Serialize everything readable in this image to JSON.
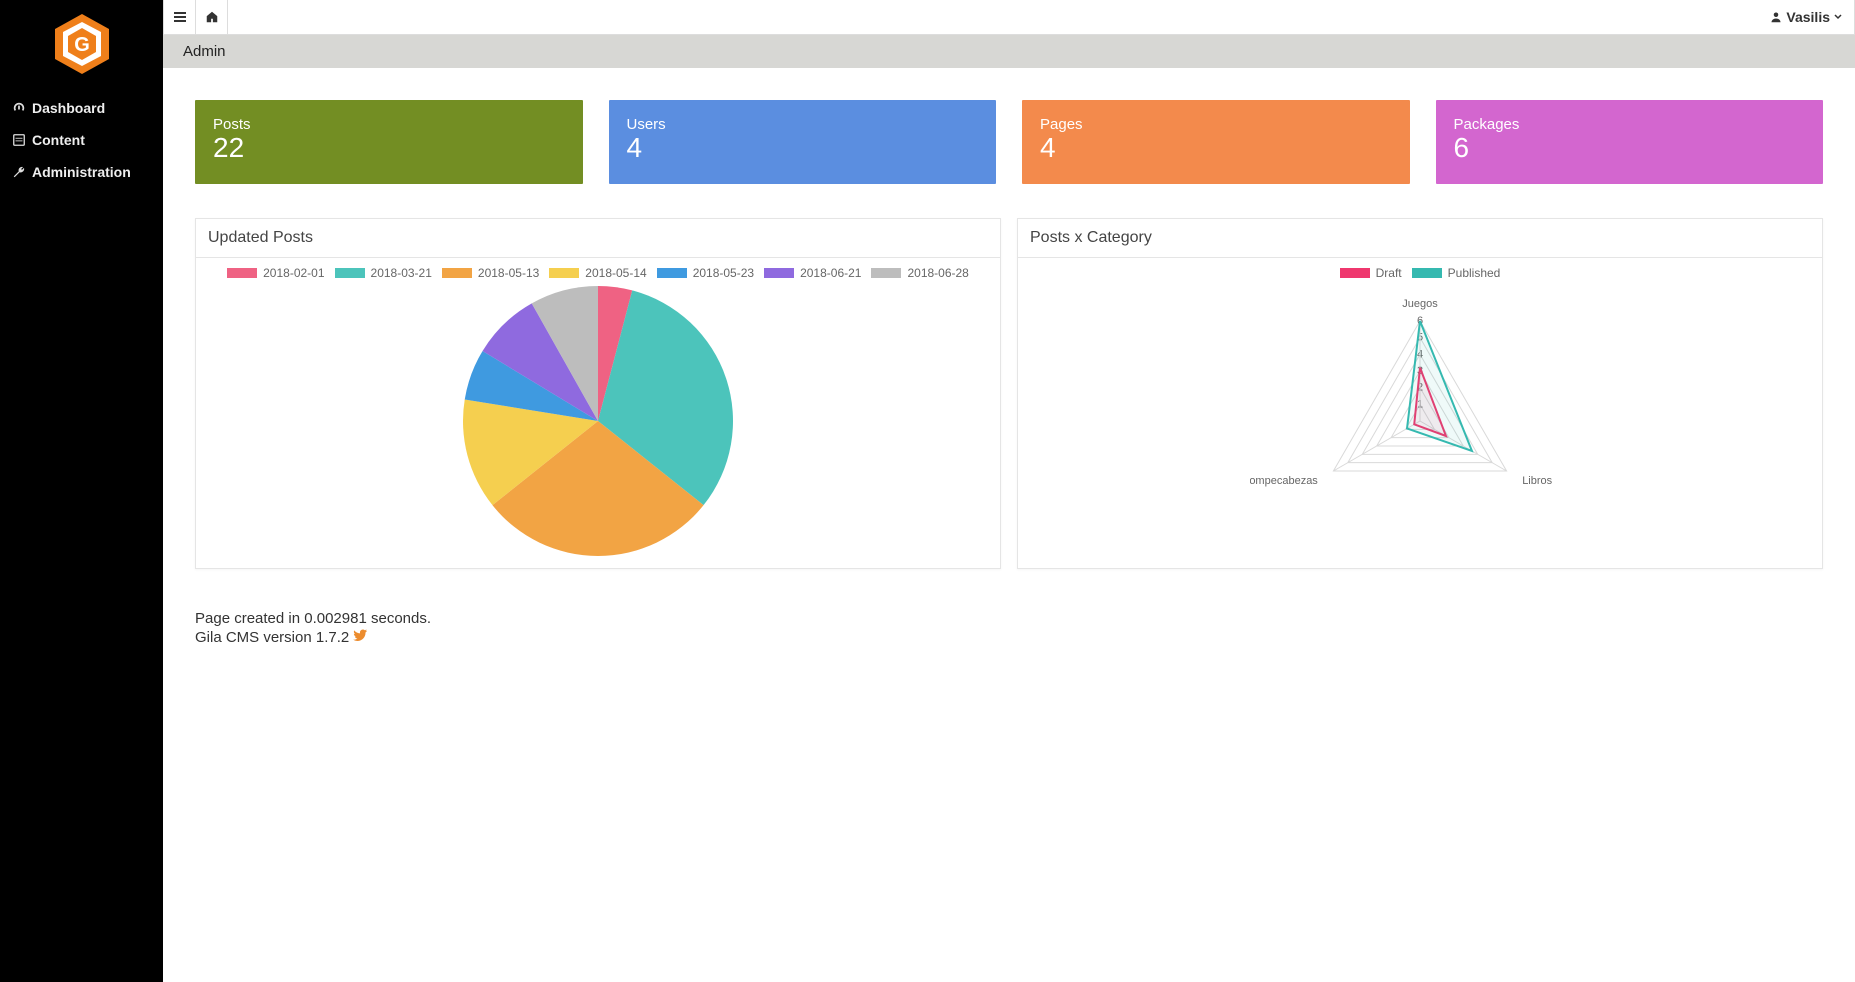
{
  "sidebar": {
    "items": [
      {
        "label": "Dashboard",
        "icon": "gauge-icon"
      },
      {
        "label": "Content",
        "icon": "file-icon"
      },
      {
        "label": "Administration",
        "icon": "wrench-icon"
      }
    ]
  },
  "topbar": {
    "user_name": "Vasilis"
  },
  "breadcrumb": {
    "title": "Admin"
  },
  "stat_cards": [
    {
      "label": "Posts",
      "value": "22",
      "color": "#738e23"
    },
    {
      "label": "Users",
      "value": "4",
      "color": "#5b8ee0"
    },
    {
      "label": "Pages",
      "value": "4",
      "color": "#f38a4c"
    },
    {
      "label": "Packages",
      "value": "6",
      "color": "#d366cf"
    }
  ],
  "pie_chart": {
    "title": "Updated Posts",
    "type": "pie",
    "size": 270,
    "series": [
      {
        "label": "2018-02-01",
        "value": 4,
        "color": "#ef6283"
      },
      {
        "label": "2018-03-21",
        "value": 31,
        "color": "#4cc4bb"
      },
      {
        "label": "2018-05-13",
        "value": 28,
        "color": "#f2a444"
      },
      {
        "label": "2018-05-14",
        "value": 13,
        "color": "#f5cf4f"
      },
      {
        "label": "2018-05-23",
        "value": 6,
        "color": "#3f9ae0"
      },
      {
        "label": "2018-06-21",
        "value": 8,
        "color": "#8f6adf"
      },
      {
        "label": "2018-06-28",
        "value": 8,
        "color": "#bdbdbd"
      }
    ]
  },
  "radar_chart": {
    "title": "Posts x Category",
    "type": "radar",
    "size": 280,
    "axes": [
      "Juegos",
      "Libros",
      "Rompecabezas"
    ],
    "ticks": [
      1,
      2,
      3,
      4,
      5,
      6
    ],
    "max": 6,
    "grid_color": "#d9d9d9",
    "label_color": "#666666",
    "label_fontsize": 11,
    "datasets": [
      {
        "label": "Draft",
        "color": "#ef376e",
        "values": [
          3.2,
          1.8,
          0.4
        ]
      },
      {
        "label": "Published",
        "color": "#35b9b0",
        "values": [
          6.0,
          3.6,
          0.9
        ]
      }
    ]
  },
  "footer": {
    "line1": "Page created in 0.002981 seconds.",
    "line2": "Gila CMS version 1.7.2 "
  }
}
